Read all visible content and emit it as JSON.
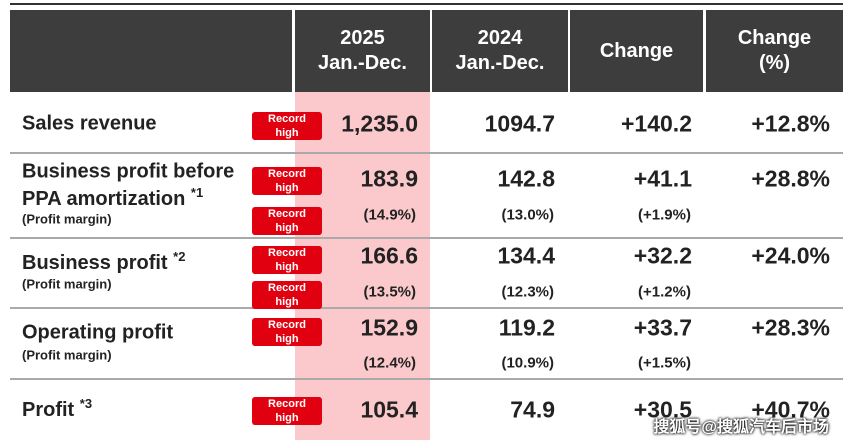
{
  "header": {
    "columns": [
      {
        "lines": [
          "2025",
          "Jan.-Dec."
        ]
      },
      {
        "lines": [
          "2024",
          "Jan.-Dec."
        ]
      },
      {
        "lines": [
          "Change"
        ]
      },
      {
        "lines": [
          "Change",
          "(%)"
        ]
      }
    ]
  },
  "rows": [
    {
      "label": [
        "Sales revenue"
      ],
      "badge": "Record high",
      "values": [
        "1,235.0",
        "1094.7",
        "+140.2",
        "+12.8%"
      ]
    },
    {
      "label": [
        "Business profit before",
        "PPA amortization"
      ],
      "note": "*1",
      "sublabel": "(Profit margin)",
      "badge": "Record high",
      "margin_badge": "Record high",
      "values": [
        "183.9",
        "142.8",
        "+41.1",
        "+28.8%"
      ],
      "margins": [
        "(14.9%)",
        "(13.0%)",
        "(+1.9%)"
      ]
    },
    {
      "label": [
        "Business profit"
      ],
      "note": "*2",
      "sublabel": "(Profit margin)",
      "badge": "Record high",
      "margin_badge": "Record high",
      "values": [
        "166.6",
        "134.4",
        "+32.2",
        "+24.0%"
      ],
      "margins": [
        "(13.5%)",
        "(12.3%)",
        "(+1.2%)"
      ]
    },
    {
      "label": [
        "Operating profit"
      ],
      "sublabel": "(Profit margin)",
      "badge": "Record high",
      "values": [
        "152.9",
        "119.2",
        "+33.7",
        "+28.3%"
      ],
      "margins": [
        "(12.4%)",
        "(10.9%)",
        "(+1.5%)"
      ]
    },
    {
      "label": [
        "Profit"
      ],
      "note": "*3",
      "badge": "Record high",
      "values": [
        "105.4",
        "74.9",
        "+30.5",
        "+40.7%"
      ]
    }
  ],
  "watermark": "搜狐号@搜狐汽车后市场"
}
